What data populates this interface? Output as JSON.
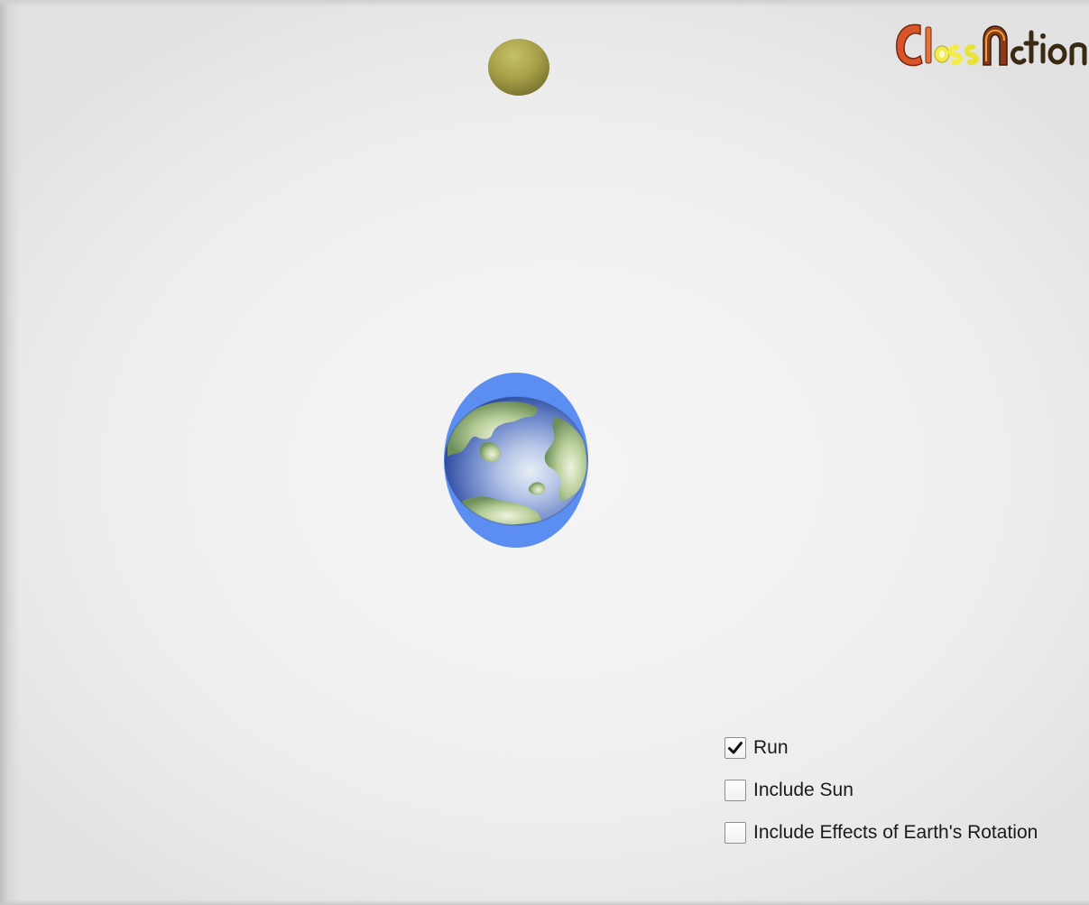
{
  "logo": {
    "text": "ClassAction",
    "colors": [
      "#d9542a",
      "#f3ec4e",
      "#8a3b1a",
      "#3a2a14"
    ]
  },
  "scene": {
    "moon": {
      "icon": "moon-icon",
      "color": "#a9a14a"
    },
    "earth": {
      "icon": "earth-icon",
      "tide_color": "#5b8ef0",
      "land_color": "#b9cf9a"
    }
  },
  "controls": [
    {
      "id": "run",
      "label": "Run",
      "checked": true
    },
    {
      "id": "include-sun",
      "label": "Include Sun",
      "checked": false
    },
    {
      "id": "include-rotation",
      "label": "Include Effects of Earth's Rotation",
      "checked": false
    }
  ]
}
